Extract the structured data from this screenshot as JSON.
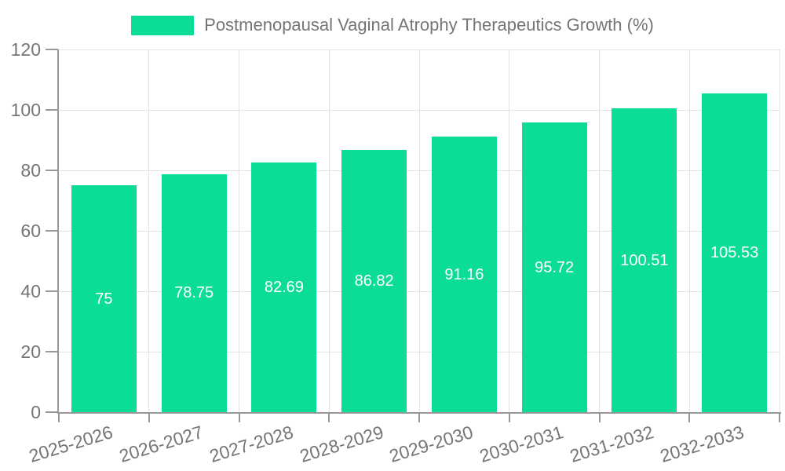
{
  "legend": {
    "label": "Postmenopausal Vaginal Atrophy Therapeutics Growth (%)"
  },
  "colors": {
    "series": "#0cdd94",
    "axis": "#999999",
    "grid": "#e3e3e3",
    "tick_text": "#757575",
    "value_label_text": "#ffffff",
    "background": "#ffffff"
  },
  "chart_data": {
    "type": "bar",
    "title": "Postmenopausal Vaginal Atrophy Therapeutics Growth (%)",
    "categories": [
      "2025-2026",
      "2026-2027",
      "2027-2028",
      "2028-2029",
      "2029-2030",
      "2030-2031",
      "2031-2032",
      "2032-2033"
    ],
    "values": [
      75,
      78.75,
      82.69,
      86.82,
      91.16,
      95.72,
      100.51,
      105.53
    ],
    "value_labels": [
      "75",
      "78.75",
      "82.69",
      "86.82",
      "91.16",
      "95.72",
      "100.51",
      "105.53"
    ],
    "xlabel": "",
    "ylabel": "",
    "ylim": [
      0,
      120
    ],
    "yticks": [
      0,
      20,
      40,
      60,
      80,
      100,
      120
    ],
    "grid": true,
    "legend_position": "top-center",
    "bar_label_position": "inside-center",
    "x_label_rotation_deg": -17
  }
}
